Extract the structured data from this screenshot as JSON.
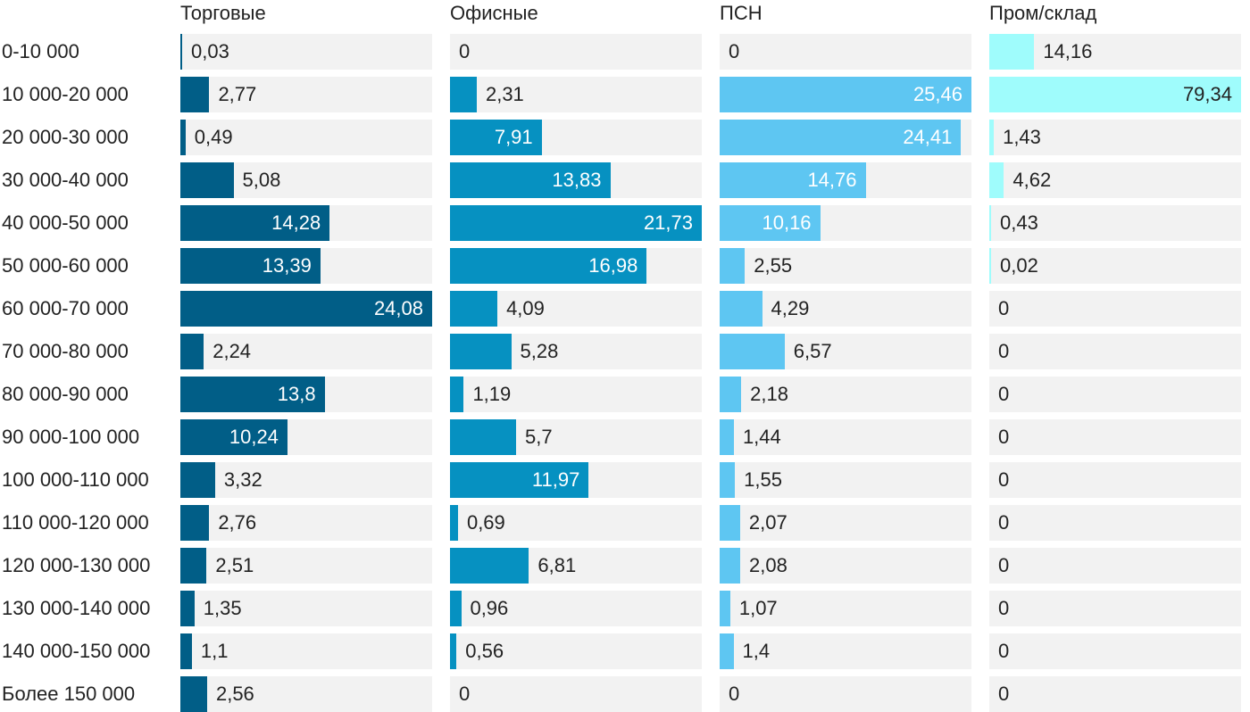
{
  "chart_data": {
    "type": "bar",
    "orientation": "horizontal",
    "layout": "small-multiples",
    "grid": false,
    "legend": "none",
    "categories": [
      "0-10 000",
      "10 000-20 000",
      "20 000-30 000",
      "30 000-40 000",
      "40 000-50 000",
      "50 000-60 000",
      "60 000-70 000",
      "70 000-80 000",
      "80 000-90 000",
      "90 000-100 000",
      "100 000-110 000",
      "110 000-120 000",
      "120 000-130 000",
      "130 000-140 000",
      "140 000-150 000",
      "Более 150 000"
    ],
    "series": [
      {
        "name": "Торговые",
        "color": "#015e87",
        "labels": [
          "0,03",
          "2,77",
          "0,49",
          "5,08",
          "14,28",
          "13,39",
          "24,08",
          "2,24",
          "13,8",
          "10,24",
          "3,32",
          "2,76",
          "2,51",
          "1,35",
          "1,1",
          "2,56"
        ],
        "values": [
          0.03,
          2.77,
          0.49,
          5.08,
          14.28,
          13.39,
          24.08,
          2.24,
          13.8,
          10.24,
          3.32,
          2.76,
          2.51,
          1.35,
          1.1,
          2.56
        ]
      },
      {
        "name": "Офисные",
        "color": "#0691c1",
        "labels": [
          "0",
          "2,31",
          "7,91",
          "13,83",
          "21,73",
          "16,98",
          "4,09",
          "5,28",
          "1,19",
          "5,7",
          "11,97",
          "0,69",
          "6,81",
          "0,96",
          "0,56",
          "0"
        ],
        "values": [
          0,
          2.31,
          7.91,
          13.83,
          21.73,
          16.98,
          4.09,
          5.28,
          1.19,
          5.7,
          11.97,
          0.69,
          6.81,
          0.96,
          0.56,
          0
        ]
      },
      {
        "name": "ПСН",
        "color": "#5ec6f2",
        "labels": [
          "0",
          "25,46",
          "24,41",
          "14,76",
          "10,16",
          "2,55",
          "4,29",
          "6,57",
          "2,18",
          "1,44",
          "1,55",
          "2,07",
          "2,08",
          "1,07",
          "1,4",
          "0"
        ],
        "values": [
          0,
          25.46,
          24.41,
          14.76,
          10.16,
          2.55,
          4.29,
          6.57,
          2.18,
          1.44,
          1.55,
          2.07,
          2.08,
          1.07,
          1.4,
          0
        ]
      },
      {
        "name": "Пром/склад",
        "color": "#9ffcfc",
        "labels": [
          "14,16",
          "79,34",
          "1,43",
          "4,62",
          "0,43",
          "0,02",
          "0",
          "0",
          "0",
          "0",
          "0",
          "0",
          "0",
          "0",
          "0",
          "0"
        ],
        "values": [
          14.16,
          79.34,
          1.43,
          4.62,
          0.43,
          0.02,
          0,
          0,
          0,
          0,
          0,
          0,
          0,
          0,
          0,
          0
        ]
      }
    ]
  }
}
